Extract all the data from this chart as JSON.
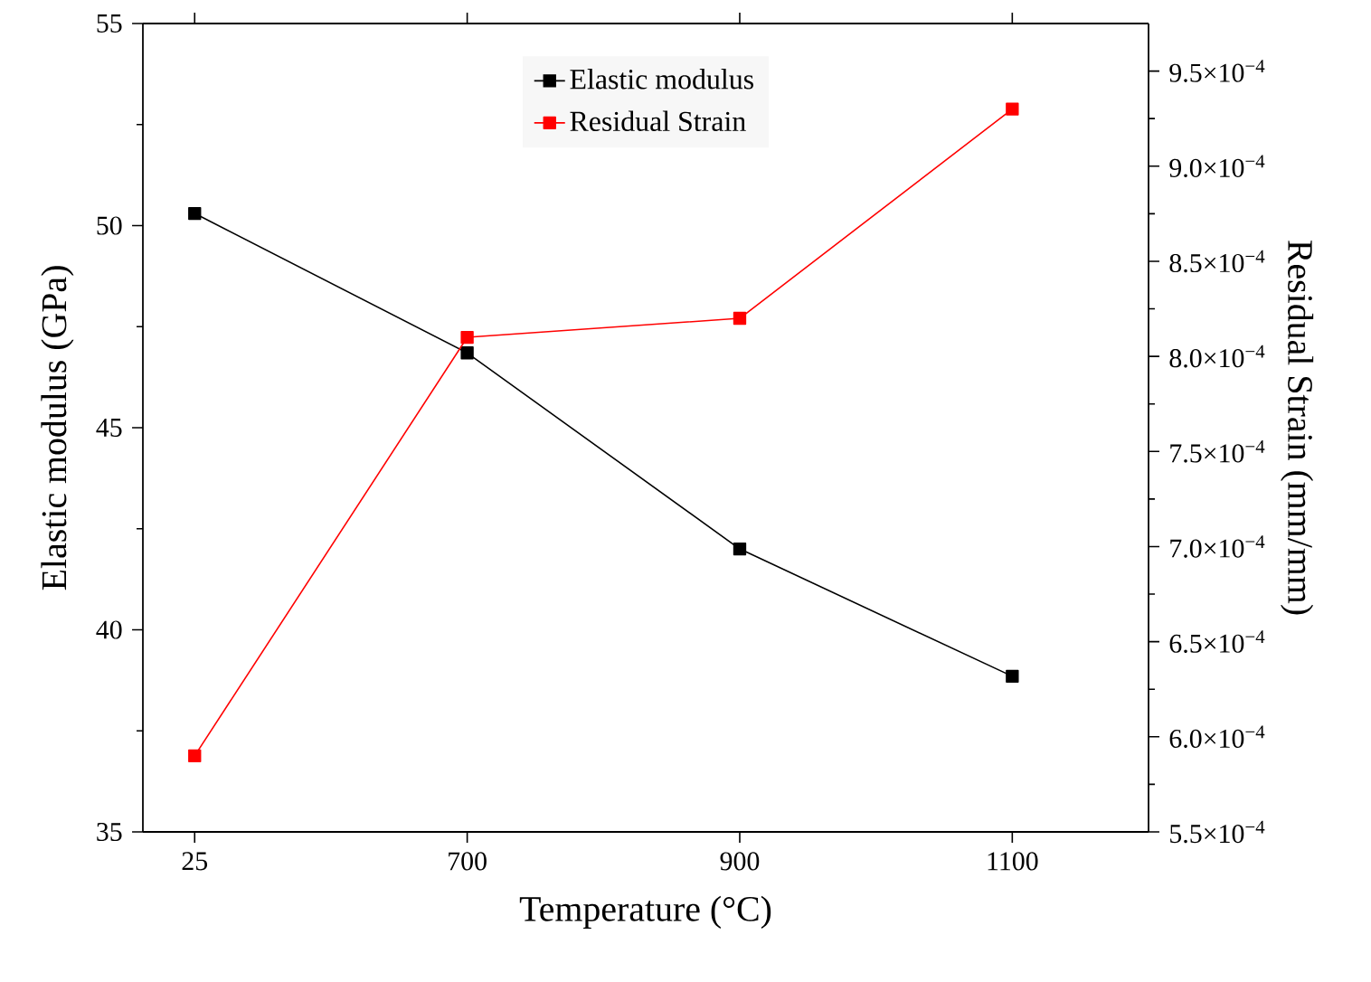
{
  "chart_data": {
    "type": "line",
    "xlabel": "Temperature (°C)",
    "ylabel": "Elastic modulus (GPa)",
    "y2label": "Residual Strain (mm/mm)",
    "categories": [
      "25",
      "700",
      "900",
      "1100"
    ],
    "series": [
      {
        "name": "Elastic modulus",
        "color": "#000000",
        "values": [
          50.3,
          46.85,
          42.0,
          38.85
        ]
      },
      {
        "name": "Residual Strain",
        "color": "#ff0000",
        "axis": "y2",
        "values": [
          0.00059,
          0.00081,
          0.00082,
          0.00093
        ]
      }
    ],
    "ylim": [
      35,
      55
    ],
    "yticks": [
      35,
      40,
      45,
      50,
      55
    ],
    "y2lim": [
      0.00055,
      0.000975
    ],
    "y2ticks": [
      {
        "value": 0.00055,
        "label": "5.5×10$^{−4}$"
      },
      {
        "value": 0.0006,
        "label": "6.0×10$^{−4}$"
      },
      {
        "value": 0.00065,
        "label": "6.5×10$^{−4}$"
      },
      {
        "value": 0.0007,
        "label": "7.0×10$^{−4}$"
      },
      {
        "value": 0.00075,
        "label": "7.5×10$^{−4}$"
      },
      {
        "value": 0.0008,
        "label": "8.0×10$^{−4}$"
      },
      {
        "value": 0.00085,
        "label": "8.5×10$^{−4}$"
      },
      {
        "value": 0.0009,
        "label": "9.0×10$^{−4}$"
      },
      {
        "value": 0.00095,
        "label": "9.5×10$^{−4}$"
      }
    ],
    "legend": "top",
    "marker": "square",
    "line_style": "solid",
    "grid": false
  }
}
